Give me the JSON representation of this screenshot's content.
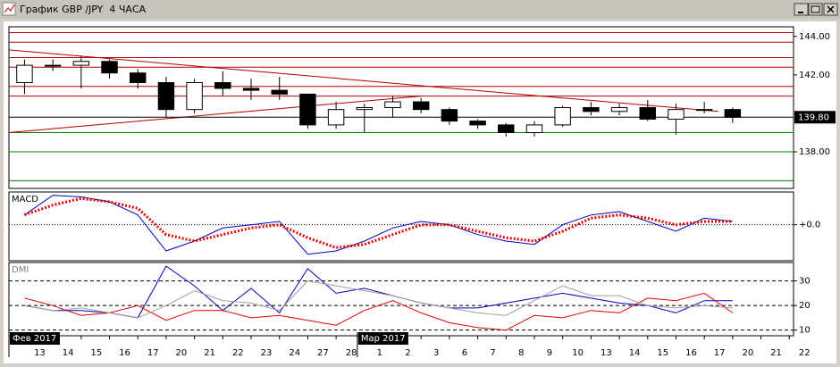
{
  "window": {
    "title": "График GBP /JPY  4 ЧАСА"
  },
  "chart_data": [
    {
      "type": "candlestick",
      "x": [
        0,
        1,
        2,
        3,
        4,
        5,
        6,
        7,
        8,
        9,
        10,
        11,
        12,
        13,
        14,
        15,
        16,
        17,
        18,
        19,
        20,
        21,
        22,
        23,
        24,
        25
      ],
      "open": [
        141.6,
        142.5,
        142.5,
        142.7,
        142.1,
        141.6,
        140.2,
        141.6,
        141.3,
        141.2,
        141.0,
        139.4,
        140.2,
        140.3,
        140.6,
        140.2,
        139.6,
        139.4,
        139.0,
        139.4,
        140.3,
        140.1,
        140.3,
        139.7,
        140.2,
        140.2
      ],
      "high": [
        142.8,
        142.8,
        143.0,
        142.8,
        142.3,
        141.9,
        141.8,
        142.2,
        141.8,
        141.9,
        141.0,
        140.6,
        140.5,
        140.9,
        140.8,
        140.3,
        139.7,
        139.5,
        139.6,
        140.4,
        140.6,
        140.5,
        140.7,
        140.5,
        140.6,
        140.3
      ],
      "low": [
        141.0,
        142.2,
        141.3,
        141.8,
        141.3,
        139.8,
        140.0,
        140.9,
        140.7,
        140.7,
        139.2,
        139.2,
        139.0,
        139.8,
        140.0,
        139.4,
        139.2,
        138.8,
        138.8,
        139.3,
        139.9,
        139.9,
        139.6,
        138.9,
        140.0,
        139.5
      ],
      "close": [
        142.5,
        142.5,
        142.7,
        142.1,
        141.6,
        140.2,
        141.6,
        141.3,
        141.2,
        141.0,
        139.4,
        140.2,
        140.3,
        140.6,
        140.2,
        139.6,
        139.4,
        139.0,
        139.4,
        140.3,
        140.1,
        140.3,
        139.7,
        140.2,
        140.2,
        139.8
      ],
      "xlim": [
        -0.55,
        27.15
      ],
      "ylim": [
        136.1,
        144.5
      ],
      "yticks": [
        {
          "value": 144,
          "label": "144.00"
        },
        {
          "value": 142,
          "label": "142.00"
        },
        {
          "value": 138,
          "label": "138.00"
        }
      ],
      "last_price": {
        "value": 139.8,
        "label": "139.80"
      },
      "levels": [
        {
          "value": 144.2,
          "color": "#b00000"
        },
        {
          "value": 143.7,
          "color": "#b00000"
        },
        {
          "value": 142.9,
          "color": "#b00000"
        },
        {
          "value": 142.4,
          "color": "#b00000"
        },
        {
          "value": 141.4,
          "color": "#b00000"
        },
        {
          "value": 140.9,
          "color": "#b00000"
        },
        {
          "value": 139.0,
          "color": "#008000"
        },
        {
          "value": 138.0,
          "color": "#008000"
        },
        {
          "value": 136.5,
          "color": "#008000"
        }
      ],
      "trendlines": [
        {
          "x": [
            -0.55,
            24.5
          ],
          "y": [
            143.3,
            140.1
          ],
          "color": "#b00000"
        },
        {
          "x": [
            -0.55,
            14
          ],
          "y": [
            139.0,
            140.9
          ],
          "color": "#b00000"
        }
      ]
    },
    {
      "type": "line",
      "title": "MACD",
      "x": [
        0,
        1,
        2,
        3,
        4,
        5,
        6,
        7,
        8,
        9,
        10,
        11,
        12,
        13,
        14,
        15,
        16,
        17,
        18,
        19,
        20,
        21,
        22,
        23,
        24,
        25
      ],
      "series": [
        {
          "color": "#0000c0",
          "values": [
            0.3,
            0.9,
            0.85,
            0.7,
            0.3,
            -0.8,
            -0.5,
            -0.1,
            0.0,
            0.1,
            -0.9,
            -0.8,
            -0.5,
            -0.1,
            0.1,
            0.0,
            -0.3,
            -0.5,
            -0.6,
            0.0,
            0.3,
            0.4,
            0.1,
            -0.2,
            0.2,
            0.1
          ]
        },
        {
          "color": "#e00000",
          "dash": "dotted",
          "values": [
            0.3,
            0.6,
            0.8,
            0.7,
            0.5,
            -0.3,
            -0.5,
            -0.3,
            -0.1,
            0.0,
            -0.4,
            -0.7,
            -0.6,
            -0.3,
            0.0,
            0.0,
            -0.2,
            -0.4,
            -0.5,
            -0.2,
            0.2,
            0.3,
            0.2,
            0.0,
            0.1,
            0.1
          ]
        }
      ],
      "xlim": [
        -0.55,
        27.15
      ],
      "ylim": [
        -1.1,
        1.0
      ],
      "yticks": [
        {
          "value": 0,
          "label": "+0.0"
        }
      ]
    },
    {
      "type": "line",
      "title": "DMI",
      "x": [
        0,
        1,
        2,
        3,
        4,
        5,
        6,
        7,
        8,
        9,
        10,
        11,
        12,
        13,
        14,
        15,
        16,
        17,
        18,
        19,
        20,
        21,
        22,
        23,
        24,
        25
      ],
      "series": [
        {
          "color": "#0000c0",
          "values": [
            20,
            18,
            18,
            17,
            15,
            36,
            28,
            18,
            27,
            17,
            35,
            25,
            27,
            24,
            21,
            19,
            19,
            21,
            23,
            25,
            23,
            21,
            20,
            17,
            22,
            22
          ]
        },
        {
          "color": "#e00000",
          "values": [
            23,
            20,
            16,
            17,
            20,
            14,
            18,
            18,
            15,
            16,
            14,
            12,
            18,
            22,
            17,
            13,
            11,
            10,
            16,
            15,
            18,
            17,
            23,
            22,
            25,
            17
          ]
        },
        {
          "color": "#a0a0a0",
          "values": [
            20,
            18,
            19,
            17,
            15,
            20,
            26,
            22,
            21,
            18,
            30,
            28,
            26,
            24,
            21,
            19,
            17,
            16,
            22,
            28,
            24,
            24,
            20,
            19,
            20,
            19
          ]
        }
      ],
      "xlim": [
        -0.55,
        27.15
      ],
      "ylim": [
        7.7,
        37.5
      ],
      "yticks": [
        30,
        20,
        10
      ],
      "grid": true,
      "xticks": [
        {
          "value": 0,
          "label": "13"
        },
        {
          "value": 1,
          "label": "14"
        },
        {
          "value": 2,
          "label": "15"
        },
        {
          "value": 3,
          "label": "16"
        },
        {
          "value": 4,
          "label": "17"
        },
        {
          "value": 5,
          "label": "20"
        },
        {
          "value": 6,
          "label": "21"
        },
        {
          "value": 7,
          "label": "22"
        },
        {
          "value": 8,
          "label": "23"
        },
        {
          "value": 9,
          "label": "24"
        },
        {
          "value": 10,
          "label": "27"
        },
        {
          "value": 11,
          "label": "28"
        },
        {
          "value": 12,
          "label": "1"
        },
        {
          "value": 13,
          "label": "2"
        },
        {
          "value": 14,
          "label": "3"
        },
        {
          "value": 15,
          "label": "6"
        },
        {
          "value": 16,
          "label": "7"
        },
        {
          "value": 17,
          "label": "8"
        },
        {
          "value": 18,
          "label": "9"
        },
        {
          "value": 19,
          "label": "10"
        },
        {
          "value": 20,
          "label": "13"
        },
        {
          "value": 21,
          "label": "14"
        },
        {
          "value": 22,
          "label": "15"
        },
        {
          "value": 23,
          "label": "16"
        },
        {
          "value": 24,
          "label": "17"
        },
        {
          "value": 25,
          "label": "20"
        },
        {
          "value": 26,
          "label": "21"
        },
        {
          "value": 27,
          "label": "22"
        }
      ],
      "month_labels": [
        {
          "value": -0.55,
          "label": "Фев 2017"
        },
        {
          "value": 11.75,
          "label": "Мар 2017"
        }
      ]
    }
  ]
}
